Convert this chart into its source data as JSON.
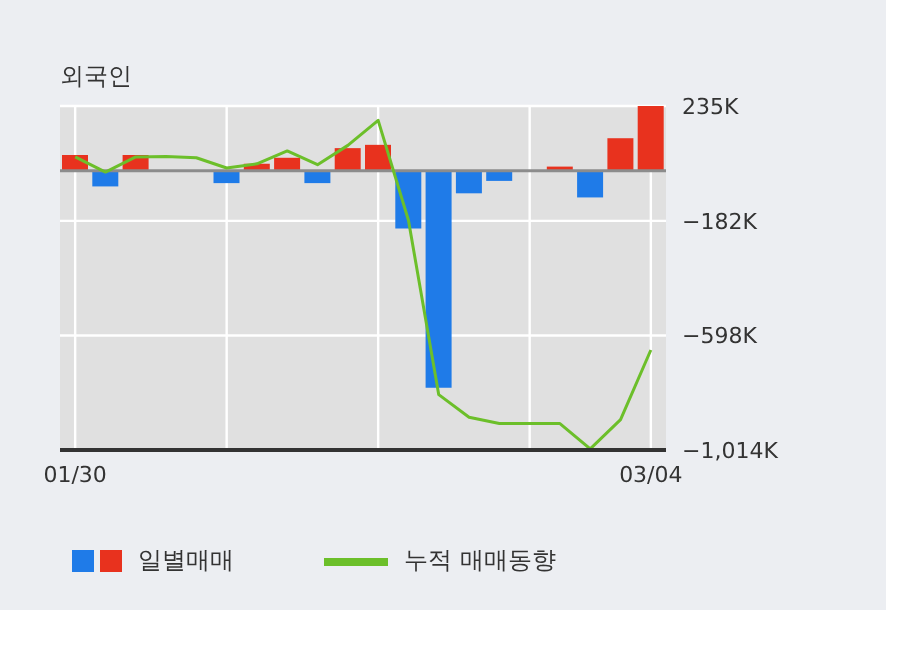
{
  "chart_data": {
    "type": "bar",
    "title": "외국인",
    "categories": [
      "01/30",
      null,
      null,
      null,
      null,
      null,
      null,
      null,
      null,
      null,
      null,
      null,
      null,
      null,
      null,
      null,
      null,
      null,
      null,
      "03/04"
    ],
    "series": [
      {
        "name": "일별매매",
        "values": [
          57,
          -57,
          57,
          0,
          0,
          -45,
          25,
          47,
          -45,
          82,
          94,
          -210,
          -788,
          -82,
          -37,
          0,
          15,
          -97,
          118,
          235
        ],
        "colors": [
          "#e8321e",
          "#1f7be8",
          "#e8321e",
          "#e8321e",
          "#e8321e",
          "#1f7be8",
          "#e8321e",
          "#e8321e",
          "#1f7be8",
          "#e8321e",
          "#e8321e",
          "#1f7be8",
          "#1f7be8",
          "#1f7be8",
          "#1f7be8",
          "#e8321e",
          "#e8321e",
          "#1f7be8",
          "#e8321e",
          "#e8321e"
        ]
      },
      {
        "name": "누적 매매동향",
        "type": "line",
        "color": "#6cbf2a",
        "values": [
          50,
          -5,
          50,
          52,
          47,
          10,
          25,
          72,
          22,
          92,
          183,
          -180,
          -813,
          -895,
          -918,
          -918,
          -918,
          -1010,
          -904,
          -651
        ]
      }
    ],
    "ylim": [
      -1014,
      235
    ],
    "yticks": [
      {
        "value": 235,
        "label": "235K"
      },
      {
        "value": -182,
        "label": "−182K"
      },
      {
        "value": -598,
        "label": "−598K"
      },
      {
        "value": -1014,
        "label": "−1,014K"
      }
    ],
    "ref_lines": [
      {
        "axis": "y",
        "value": 0,
        "color": "#8c8c8c"
      }
    ],
    "grid": true,
    "legend": "bottom",
    "marker": "none"
  }
}
